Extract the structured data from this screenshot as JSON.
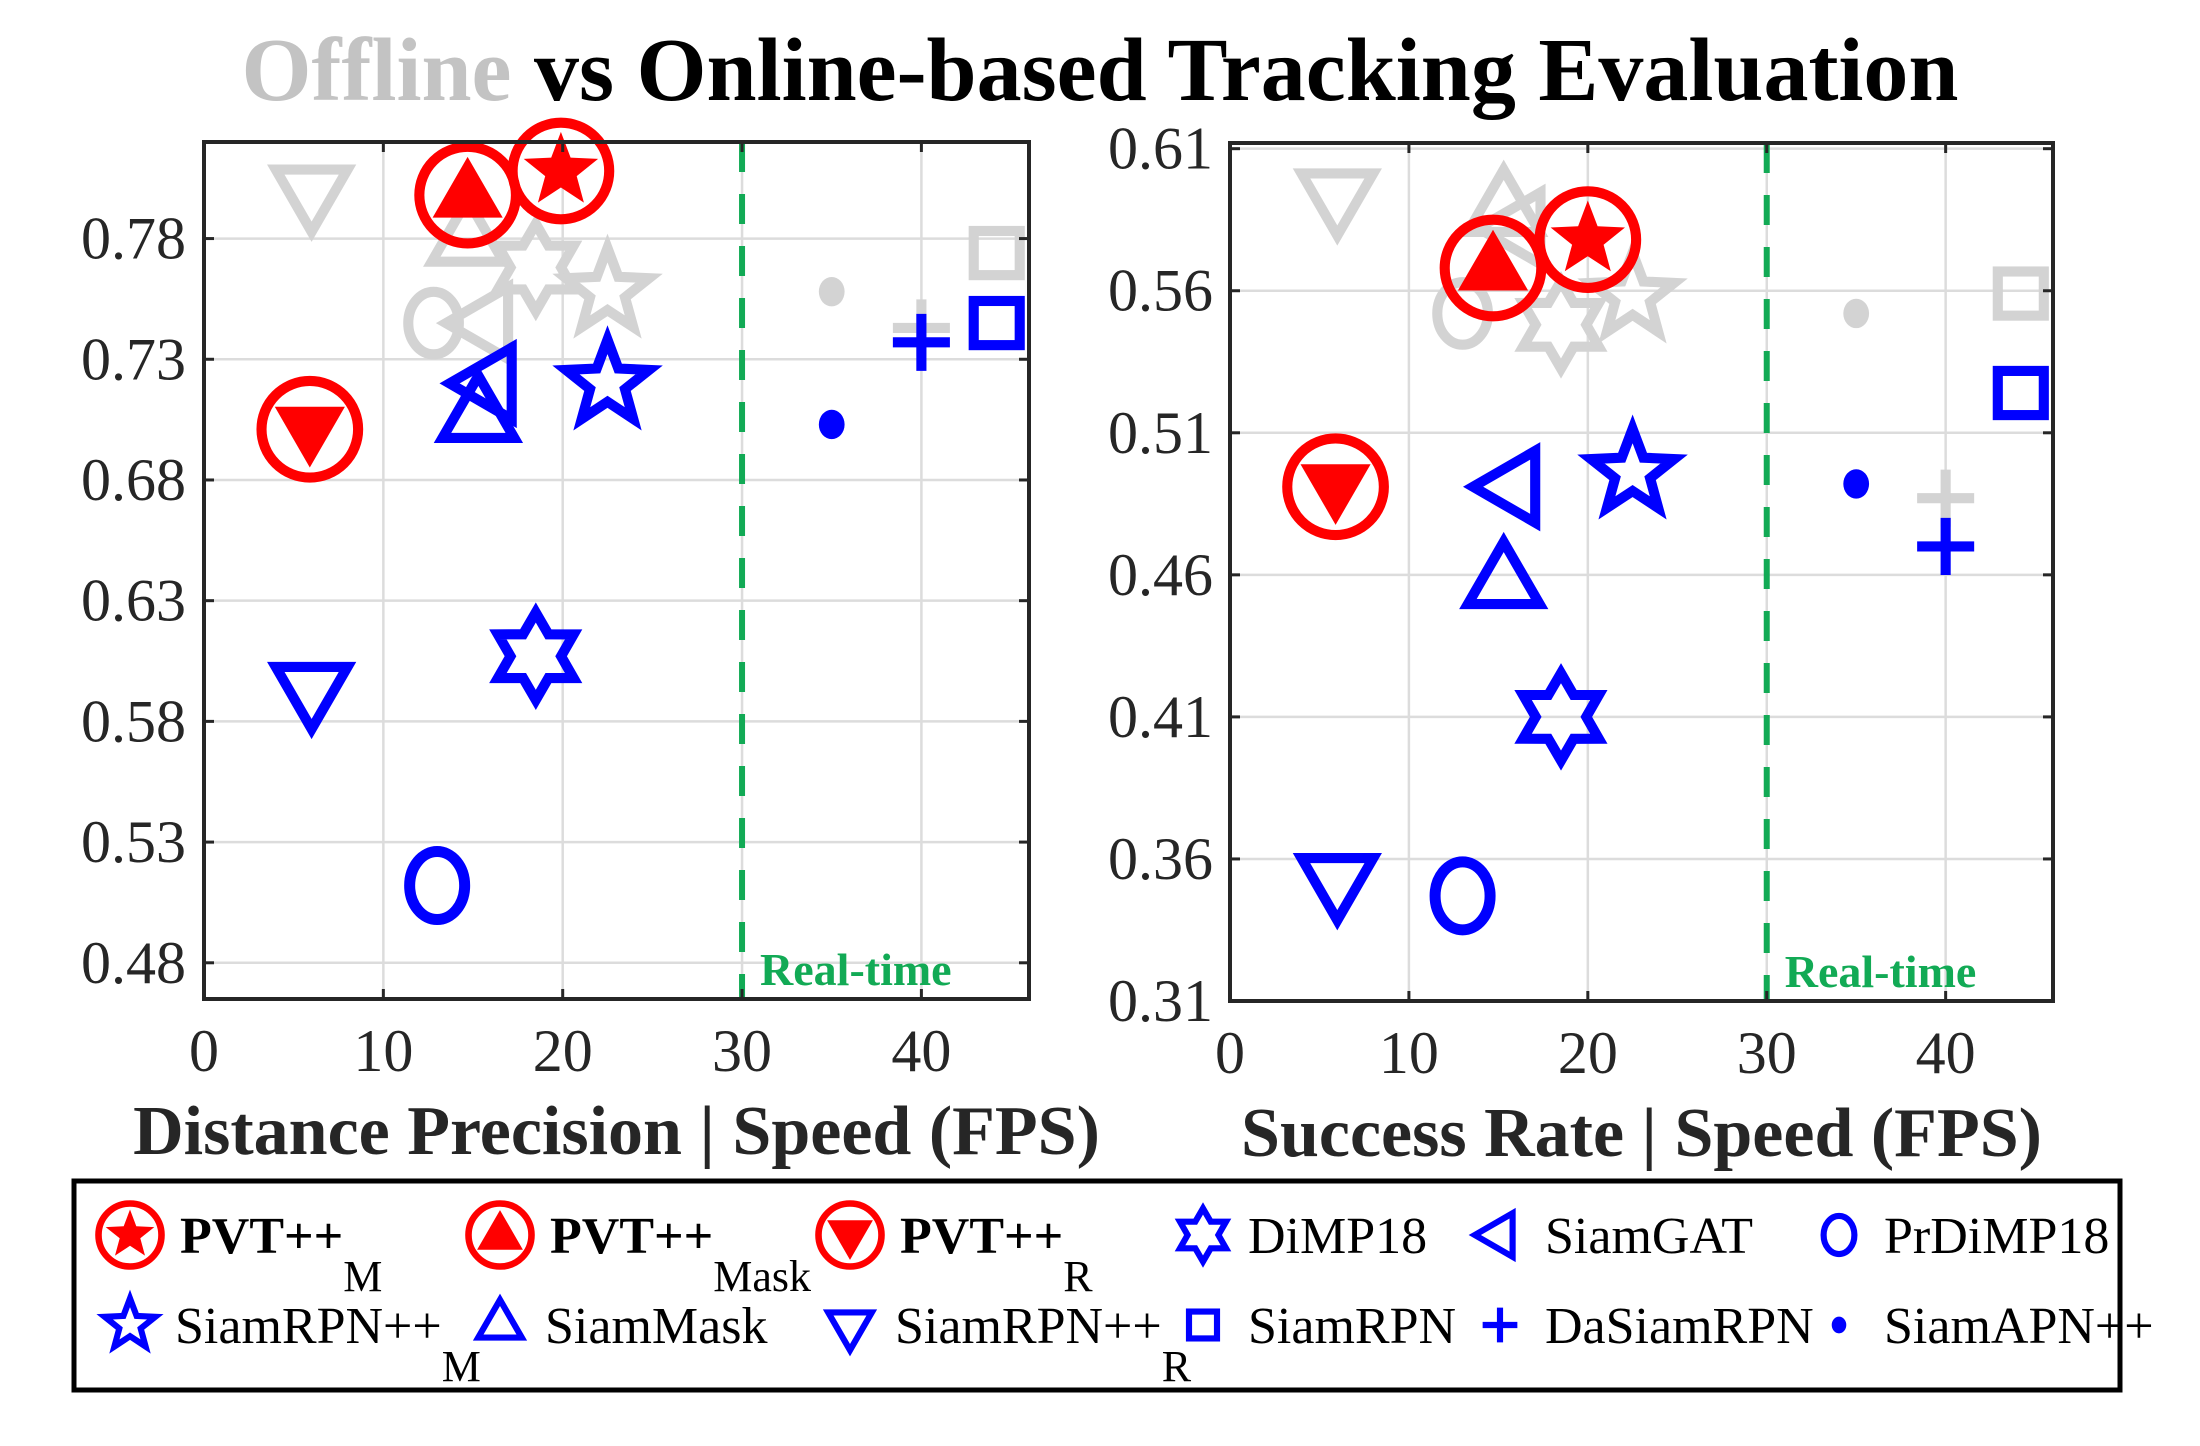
{
  "title": {
    "offline_word": "Offline",
    "rest": " vs Online-based Tracking Evaluation",
    "offline_color": "#c3c3c3",
    "rest_color": "#000000"
  },
  "colors": {
    "online_red": "#ff0000",
    "online_blue": "#0000ff",
    "offline_gray": "#d3d3d3",
    "realtime_green": "#12aa55",
    "grid": "#dcdcdc",
    "axis": "#262626"
  },
  "legend": {
    "items": [
      {
        "id": "pvt_m",
        "label": "PVT++",
        "sub": "M",
        "bold": true,
        "marker": "circle-star",
        "color": "#ff0000"
      },
      {
        "id": "pvt_mask",
        "label": "PVT++",
        "sub": "Mask",
        "bold": true,
        "marker": "circle-triangle-up",
        "color": "#ff0000"
      },
      {
        "id": "pvt_r",
        "label": "PVT++",
        "sub": "R",
        "bold": true,
        "marker": "circle-triangle-down",
        "color": "#ff0000"
      },
      {
        "id": "dimp18",
        "label": "DiMP18",
        "sub": "",
        "bold": false,
        "marker": "hexagram",
        "color": "#0000ff"
      },
      {
        "id": "siamgat",
        "label": "SiamGAT",
        "sub": "",
        "bold": false,
        "marker": "triangle-left",
        "color": "#0000ff"
      },
      {
        "id": "prdimp18",
        "label": "PrDiMP18",
        "sub": "",
        "bold": false,
        "marker": "circle",
        "color": "#0000ff"
      },
      {
        "id": "siamrpnpp_m",
        "label": "SiamRPN++",
        "sub": "M",
        "bold": false,
        "marker": "star",
        "color": "#0000ff"
      },
      {
        "id": "siammask",
        "label": "SiamMask",
        "sub": "",
        "bold": false,
        "marker": "triangle-up",
        "color": "#0000ff"
      },
      {
        "id": "siamrpnpp_r",
        "label": "SiamRPN++",
        "sub": "R",
        "bold": false,
        "marker": "triangle-down",
        "color": "#0000ff"
      },
      {
        "id": "siamrpn",
        "label": "SiamRPN",
        "sub": "",
        "bold": false,
        "marker": "square",
        "color": "#0000ff"
      },
      {
        "id": "dasiamrpn",
        "label": "DaSiamRPN",
        "sub": "",
        "bold": false,
        "marker": "plus",
        "color": "#0000ff"
      },
      {
        "id": "siamapnpp",
        "label": "SiamAPN++",
        "sub": "",
        "bold": false,
        "marker": "dot",
        "color": "#0000ff"
      }
    ]
  },
  "chart_data": [
    {
      "type": "scatter",
      "title": "",
      "xlabel": "Distance Precision | Speed (FPS)",
      "ylabel": "",
      "xlim": [
        0,
        46
      ],
      "ylim": [
        0.465,
        0.82
      ],
      "xticks": [
        0,
        10,
        20,
        30,
        40
      ],
      "xtick_labels": [
        "0",
        "10",
        "20",
        "30",
        "40"
      ],
      "yticks": [
        0.48,
        0.53,
        0.58,
        0.63,
        0.68,
        0.73,
        0.78
      ],
      "ytick_labels": [
        "0.48",
        "0.53",
        "0.58",
        "0.63",
        "0.68",
        "0.73",
        "0.78"
      ],
      "grid": true,
      "realtime_line": {
        "x": 30,
        "label": "Real-time"
      },
      "offline": [
        {
          "tracker": "siamrpnpp_r",
          "x": 6.0,
          "y": 0.8
        },
        {
          "tracker": "siammask",
          "x": 14.7,
          "y": 0.779
        },
        {
          "tracker": "dimp18",
          "x": 18.5,
          "y": 0.768
        },
        {
          "tracker": "siamrpnpp_m",
          "x": 22.5,
          "y": 0.758
        },
        {
          "tracker": "prdimp18",
          "x": 12.8,
          "y": 0.745
        },
        {
          "tracker": "siamgat",
          "x": 15.8,
          "y": 0.745
        },
        {
          "tracker": "siamapnpp",
          "x": 35.0,
          "y": 0.758
        },
        {
          "tracker": "dasiamrpn",
          "x": 40.0,
          "y": 0.743
        },
        {
          "tracker": "siamrpn",
          "x": 44.2,
          "y": 0.774
        }
      ],
      "online": [
        {
          "tracker": "pvt_m",
          "x": 19.9,
          "y": 0.808
        },
        {
          "tracker": "pvt_mask",
          "x": 14.7,
          "y": 0.798
        },
        {
          "tracker": "pvt_r",
          "x": 5.9,
          "y": 0.701
        },
        {
          "tracker": "siamgat",
          "x": 16.0,
          "y": 0.72
        },
        {
          "tracker": "siammask",
          "x": 15.3,
          "y": 0.706
        },
        {
          "tracker": "siamrpnpp_m",
          "x": 22.5,
          "y": 0.72
        },
        {
          "tracker": "siamapnpp",
          "x": 35.0,
          "y": 0.703
        },
        {
          "tracker": "dasiamrpn",
          "x": 40.0,
          "y": 0.737
        },
        {
          "tracker": "siamrpn",
          "x": 44.2,
          "y": 0.745
        },
        {
          "tracker": "siamrpnpp_r",
          "x": 6.0,
          "y": 0.594
        },
        {
          "tracker": "dimp18",
          "x": 18.5,
          "y": 0.607
        },
        {
          "tracker": "prdimp18",
          "x": 13.0,
          "y": 0.512
        }
      ]
    },
    {
      "type": "scatter",
      "title": "",
      "xlabel": "Success Rate | Speed (FPS)",
      "ylabel": "",
      "xlim": [
        0,
        46
      ],
      "ylim": [
        0.31,
        0.612
      ],
      "xticks": [
        0,
        10,
        20,
        30,
        40
      ],
      "xtick_labels": [
        "0",
        "10",
        "20",
        "30",
        "40"
      ],
      "yticks": [
        0.31,
        0.36,
        0.41,
        0.46,
        0.51,
        0.56,
        0.61
      ],
      "ytick_labels": [
        "0.31",
        "0.36",
        "0.41",
        "0.46",
        "0.51",
        "0.56",
        "0.61"
      ],
      "grid": true,
      "realtime_line": {
        "x": 30,
        "label": "Real-time"
      },
      "offline": [
        {
          "tracker": "siamrpnpp_r",
          "x": 6.0,
          "y": 0.594
        },
        {
          "tracker": "siammask",
          "x": 15.3,
          "y": 0.588
        },
        {
          "tracker": "siamgat",
          "x": 16.2,
          "y": 0.582
        },
        {
          "tracker": "prdimp18",
          "x": 13.0,
          "y": 0.552
        },
        {
          "tracker": "dimp18",
          "x": 18.5,
          "y": 0.548
        },
        {
          "tracker": "siamrpnpp_m",
          "x": 22.5,
          "y": 0.558
        },
        {
          "tracker": "siamapnpp",
          "x": 35.0,
          "y": 0.552
        },
        {
          "tracker": "dasiamrpn",
          "x": 40.0,
          "y": 0.487
        },
        {
          "tracker": "siamrpn",
          "x": 44.2,
          "y": 0.559
        }
      ],
      "online": [
        {
          "tracker": "pvt_m",
          "x": 20.0,
          "y": 0.578
        },
        {
          "tracker": "pvt_mask",
          "x": 14.7,
          "y": 0.568
        },
        {
          "tracker": "pvt_r",
          "x": 5.9,
          "y": 0.491
        },
        {
          "tracker": "siamgat",
          "x": 15.9,
          "y": 0.491
        },
        {
          "tracker": "siamrpnpp_m",
          "x": 22.5,
          "y": 0.496
        },
        {
          "tracker": "siammask",
          "x": 15.3,
          "y": 0.457
        },
        {
          "tracker": "dimp18",
          "x": 18.5,
          "y": 0.41
        },
        {
          "tracker": "siamrpnpp_r",
          "x": 6.0,
          "y": 0.353
        },
        {
          "tracker": "prdimp18",
          "x": 13.0,
          "y": 0.347
        },
        {
          "tracker": "siamapnpp",
          "x": 35.0,
          "y": 0.492
        },
        {
          "tracker": "dasiamrpn",
          "x": 40.0,
          "y": 0.47
        },
        {
          "tracker": "siamrpn",
          "x": 44.2,
          "y": 0.524
        }
      ]
    }
  ]
}
